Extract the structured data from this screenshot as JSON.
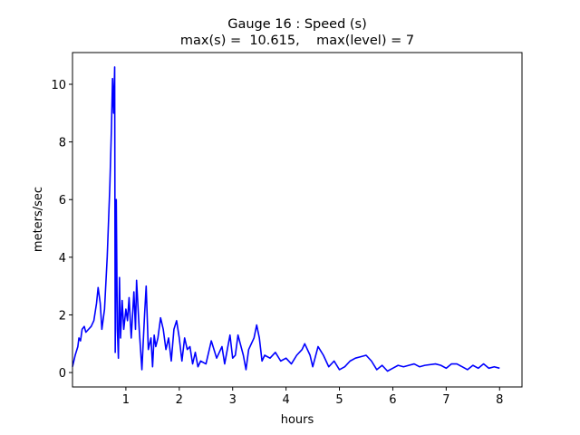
{
  "chart_data": {
    "type": "line",
    "title": [
      "Gauge 16 : Speed (s)",
      "max(s) =  10.615,    max(level) = 7"
    ],
    "xlabel": "hours",
    "ylabel": "meters/sec",
    "x": [
      0,
      0.05,
      0.1,
      0.12,
      0.15,
      0.18,
      0.22,
      0.25,
      0.3,
      0.35,
      0.4,
      0.45,
      0.48,
      0.52,
      0.55,
      0.6,
      0.65,
      0.7,
      0.73,
      0.75,
      0.77,
      0.79,
      0.8,
      0.82,
      0.84,
      0.86,
      0.88,
      0.9,
      0.93,
      0.96,
      1.0,
      1.03,
      1.06,
      1.1,
      1.15,
      1.18,
      1.2,
      1.25,
      1.3,
      1.35,
      1.38,
      1.42,
      1.47,
      1.5,
      1.53,
      1.56,
      1.6,
      1.65,
      1.7,
      1.75,
      1.8,
      1.85,
      1.9,
      1.95,
      2.0,
      2.05,
      2.1,
      2.15,
      2.2,
      2.25,
      2.3,
      2.35,
      2.4,
      2.5,
      2.6,
      2.7,
      2.8,
      2.85,
      2.95,
      3.0,
      3.05,
      3.1,
      3.2,
      3.25,
      3.3,
      3.4,
      3.45,
      3.5,
      3.55,
      3.6,
      3.7,
      3.8,
      3.9,
      4.0,
      4.1,
      4.2,
      4.3,
      4.35,
      4.45,
      4.5,
      4.6,
      4.7,
      4.8,
      4.9,
      5.0,
      5.1,
      5.2,
      5.3,
      5.4,
      5.5,
      5.6,
      5.7,
      5.8,
      5.9,
      6.0,
      6.1,
      6.2,
      6.3,
      6.4,
      6.5,
      6.6,
      6.8,
      6.9,
      7.0,
      7.1,
      7.2,
      7.3,
      7.4,
      7.5,
      7.6,
      7.7,
      7.8,
      7.9,
      8.0
    ],
    "series": [
      {
        "name": "speed",
        "color": "#0000ff",
        "values": [
          0.2,
          0.6,
          0.9,
          1.2,
          1.1,
          1.5,
          1.6,
          1.4,
          1.5,
          1.6,
          1.8,
          2.4,
          2.95,
          2.4,
          1.5,
          2.2,
          4,
          6.5,
          8.5,
          10.2,
          9,
          10.6,
          0.7,
          6,
          1.5,
          0.5,
          3.3,
          1.2,
          2.5,
          1.5,
          2.2,
          1.8,
          2.6,
          1.2,
          2.8,
          1.5,
          3.2,
          1.5,
          0.1,
          2,
          3.0,
          0.8,
          1.2,
          0.2,
          1.3,
          0.9,
          1.2,
          1.9,
          1.5,
          0.8,
          1.2,
          0.4,
          1.5,
          1.8,
          1.2,
          0.4,
          1.2,
          0.8,
          0.9,
          0.3,
          0.7,
          0.2,
          0.4,
          0.3,
          1.1,
          0.5,
          0.9,
          0.3,
          1.3,
          0.5,
          0.6,
          1.3,
          0.6,
          0.1,
          0.8,
          1.2,
          1.65,
          1.2,
          0.4,
          0.6,
          0.5,
          0.7,
          0.4,
          0.5,
          0.3,
          0.6,
          0.8,
          1.0,
          0.6,
          0.2,
          0.9,
          0.6,
          0.2,
          0.4,
          0.1,
          0.2,
          0.4,
          0.5,
          0.55,
          0.6,
          0.4,
          0.1,
          0.25,
          0.05,
          0.15,
          0.25,
          0.2,
          0.25,
          0.3,
          0.2,
          0.25,
          0.3,
          0.25,
          0.15,
          0.3,
          0.3,
          0.2,
          0.1,
          0.25,
          0.15,
          0.3,
          0.15,
          0.2,
          0.15
        ]
      }
    ],
    "xlim": [
      0,
      8.42
    ],
    "xticks": [
      1,
      2,
      3,
      4,
      5,
      6,
      7,
      8
    ],
    "ylim": [
      -0.5,
      11.1
    ],
    "yticks": [
      0,
      2,
      4,
      6,
      8,
      10
    ]
  }
}
